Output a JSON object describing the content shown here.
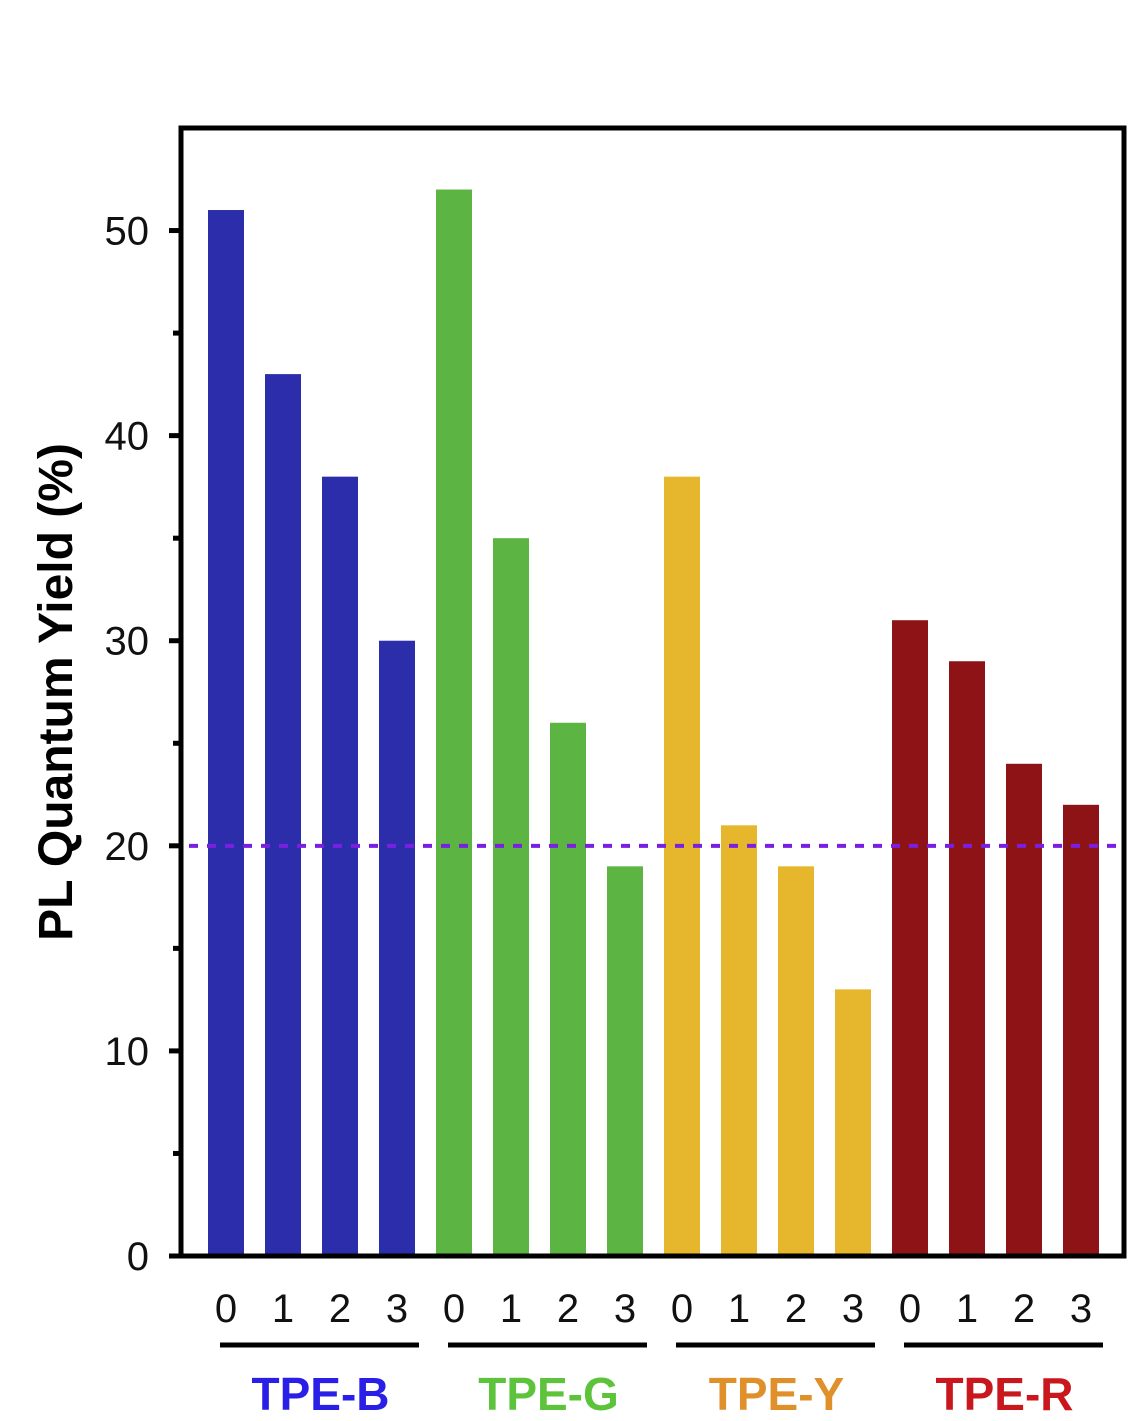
{
  "chart_data": {
    "type": "bar",
    "title": "",
    "xlabel": "",
    "ylabel": "PL Quantum Yield (%)",
    "ylim": [
      0,
      55
    ],
    "yticks": [
      0,
      10,
      20,
      30,
      40,
      50
    ],
    "grid": false,
    "reference_line": {
      "value": 20,
      "style": "dotted",
      "color": "#7a1fe0"
    },
    "groups": [
      {
        "name": "TPE-B",
        "color": "#2b2dab",
        "label_color": "#2a1fe6",
        "categories": [
          "0",
          "1",
          "2",
          "3"
        ],
        "values": [
          51,
          43,
          38,
          30
        ]
      },
      {
        "name": "TPE-G",
        "color": "#5cb542",
        "label_color": "#5cc33a",
        "categories": [
          "0",
          "1",
          "2",
          "3"
        ],
        "values": [
          52,
          35,
          26,
          19
        ]
      },
      {
        "name": "TPE-Y",
        "color": "#e6b72c",
        "label_color": "#e0902a",
        "categories": [
          "0",
          "1",
          "2",
          "3"
        ],
        "values": [
          38,
          21,
          19,
          13
        ]
      },
      {
        "name": "TPE-R",
        "color": "#8e1317",
        "label_color": "#c8181e",
        "categories": [
          "0",
          "1",
          "2",
          "3"
        ],
        "values": [
          31,
          29,
          24,
          22
        ]
      }
    ]
  }
}
